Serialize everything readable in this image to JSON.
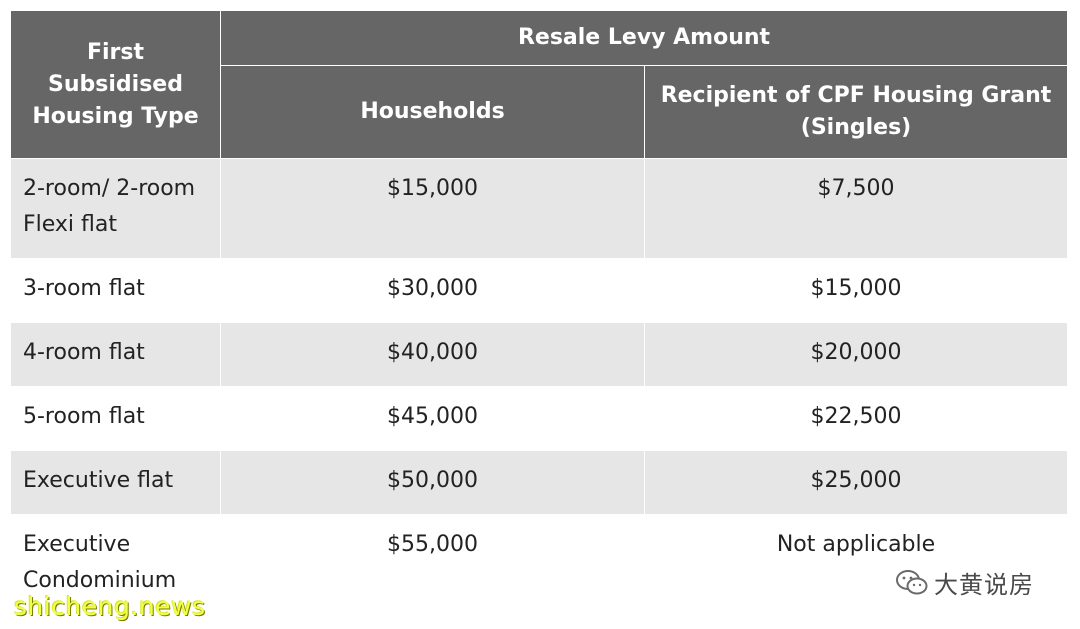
{
  "table": {
    "header": {
      "type_label": "First Subsidised Housing Type",
      "group_label": "Resale Levy Amount",
      "households_label": "Households",
      "singles_label": "Recipient of CPF Housing Grant (Singles)"
    },
    "rows": [
      {
        "type": "2-room/ 2-room Flexi flat",
        "households": "$15,000",
        "singles": "$7,500"
      },
      {
        "type": "3-room flat",
        "households": "$30,000",
        "singles": "$15,000"
      },
      {
        "type": "4-room flat",
        "households": "$40,000",
        "singles": "$20,000"
      },
      {
        "type": "5-room flat",
        "households": "$45,000",
        "singles": "$22,500"
      },
      {
        "type": "Executive flat",
        "households": "$50,000",
        "singles": "$25,000"
      },
      {
        "type": "Executive Condominium",
        "households": "$55,000",
        "singles": "Not applicable"
      }
    ]
  },
  "watermarks": {
    "wechat_name": "大黄说房",
    "wechat_icon": "wechat-logo-icon",
    "site": "shicheng.news",
    "site_color": "#f0ff4a"
  },
  "colors": {
    "header_bg": "#666666",
    "row_alt_bg": "#e6e6e6"
  }
}
